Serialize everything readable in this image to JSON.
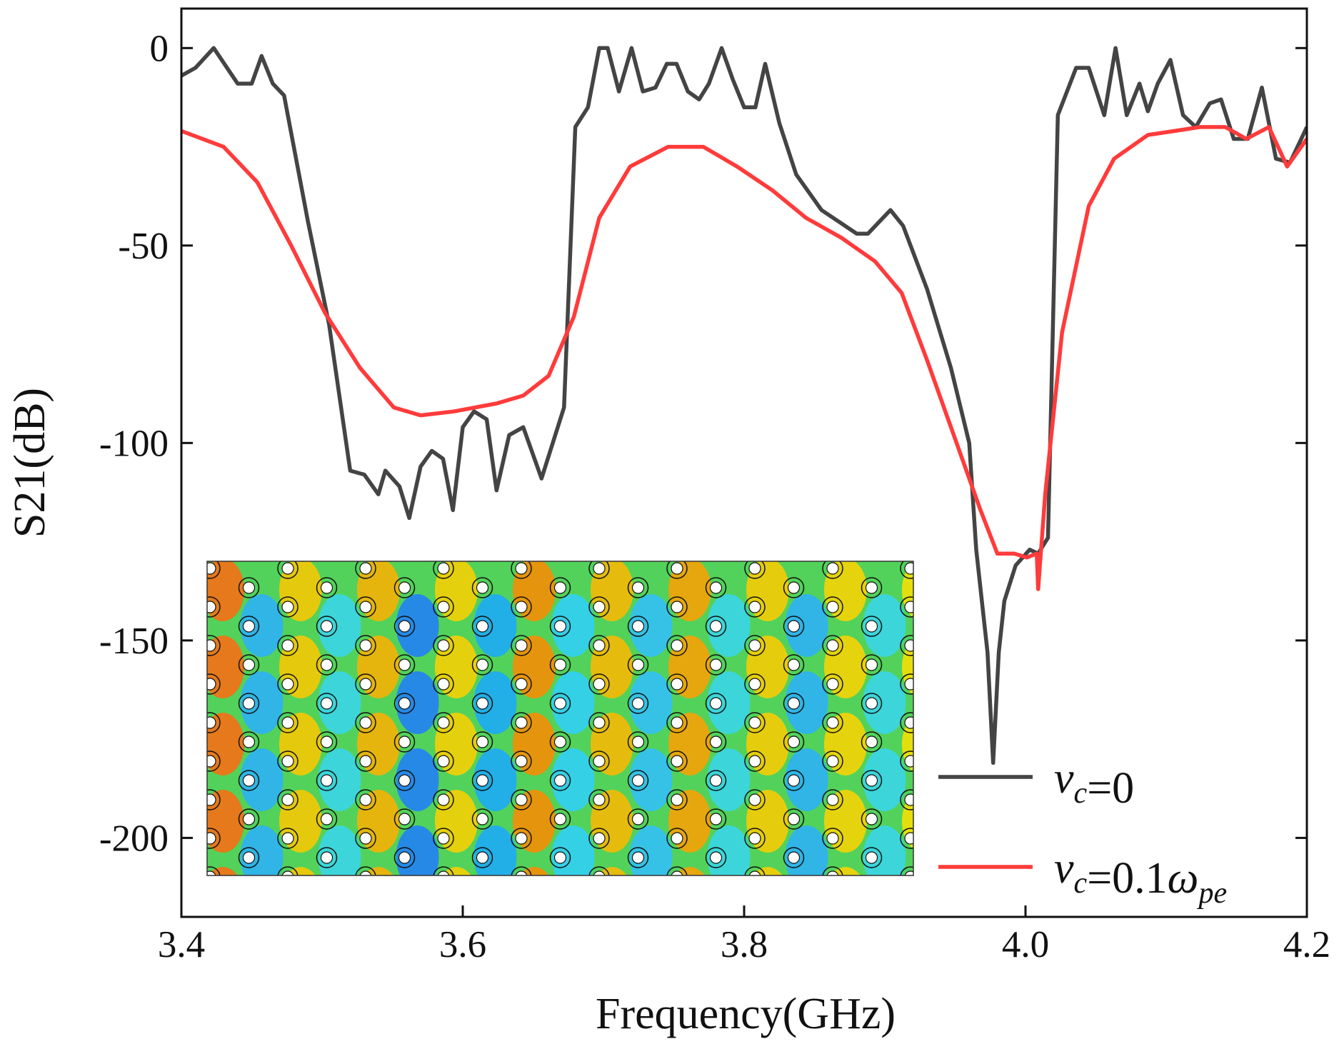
{
  "chart_data": {
    "type": "line",
    "xlabel": "Frequency(GHz)",
    "ylabel": "S21(dB)",
    "xlim": [
      3.4,
      4.2
    ],
    "xticks": [
      3.4,
      3.6,
      3.8,
      {
        "value": 4.0,
        "label": "4.0"
      },
      4.2
    ],
    "ylim": [
      -220,
      10
    ],
    "yticks": [
      0,
      -50,
      -100,
      -150,
      -200
    ],
    "legend": "lower right",
    "series": [
      {
        "name": "vc=0",
        "color": "#444444",
        "x": [
          3.4,
          3.41,
          3.423,
          3.44,
          3.45,
          3.457,
          3.465,
          3.473,
          3.49,
          3.505,
          3.52,
          3.53,
          3.54,
          3.545,
          3.555,
          3.562,
          3.57,
          3.578,
          3.586,
          3.593,
          3.6,
          3.608,
          3.617,
          3.624,
          3.633,
          3.643,
          3.656,
          3.672,
          3.68,
          3.689,
          3.697,
          3.703,
          3.711,
          3.72,
          3.728,
          3.737,
          3.745,
          3.752,
          3.76,
          3.768,
          3.775,
          3.784,
          3.792,
          3.8,
          3.808,
          3.815,
          3.825,
          3.837,
          3.855,
          3.88,
          3.888,
          3.904,
          3.913,
          3.93,
          3.947,
          3.96,
          3.965,
          3.973,
          3.977,
          3.981,
          3.985,
          3.993,
          4.003,
          4.009,
          4.016,
          4.023,
          4.036,
          4.045,
          4.056,
          4.064,
          4.072,
          4.081,
          4.087,
          4.094,
          4.103,
          4.112,
          4.121,
          4.131,
          4.139,
          4.148,
          4.158,
          4.168,
          4.178,
          4.188,
          4.2
        ],
        "values": [
          -7,
          -5,
          0,
          -9,
          -9,
          -2,
          -9,
          -12,
          -44,
          -70,
          -107,
          -108,
          -113,
          -107,
          -111,
          -119,
          -106,
          -102,
          -104,
          -117,
          -96,
          -92,
          -94,
          -112,
          -98,
          -96,
          -109,
          -91,
          -20,
          -15,
          0,
          0,
          -11,
          0,
          -11,
          -10,
          -4,
          -4,
          -11,
          -13,
          -9,
          0,
          -8,
          -15,
          -15,
          -4,
          -19,
          -32,
          -41,
          -47,
          -47,
          -41,
          -45,
          -61,
          -81,
          -100,
          -127,
          -153,
          -181,
          -153,
          -140,
          -131,
          -127,
          -128,
          -124,
          -17,
          -5,
          -5,
          -17,
          0,
          -17,
          -9,
          -16,
          -9,
          -3,
          -17,
          -20,
          -14,
          -13,
          -23,
          -23,
          -10,
          -28,
          -29,
          -20
        ]
      },
      {
        "name": "vc=0.1ωpe",
        "color": "#ff3b3b",
        "x": [
          3.4,
          3.43,
          3.454,
          3.478,
          3.502,
          3.527,
          3.551,
          3.57,
          3.594,
          3.624,
          3.643,
          3.661,
          3.679,
          3.697,
          3.719,
          3.746,
          3.771,
          3.795,
          3.82,
          3.844,
          3.869,
          3.893,
          3.912,
          3.93,
          3.947,
          3.968,
          3.98,
          3.992,
          4.001,
          4.008,
          4.009,
          4.014,
          4.026,
          4.045,
          4.063,
          4.087,
          4.106,
          4.124,
          4.142,
          4.157,
          4.173,
          4.186,
          4.2
        ],
        "values": [
          -21,
          -25,
          -34,
          -50,
          -67,
          -81,
          -91,
          -93,
          -92,
          -90,
          -88,
          -83,
          -68,
          -43,
          -30,
          -25,
          -25,
          -30,
          -36,
          -43,
          -48,
          -54,
          -62,
          -79,
          -96,
          -117,
          -128,
          -128,
          -129,
          -128,
          -137,
          -113,
          -72,
          -40,
          -28,
          -22,
          -21,
          -20,
          -20,
          -23,
          -20,
          -30,
          -23
        ]
      }
    ]
  }
}
